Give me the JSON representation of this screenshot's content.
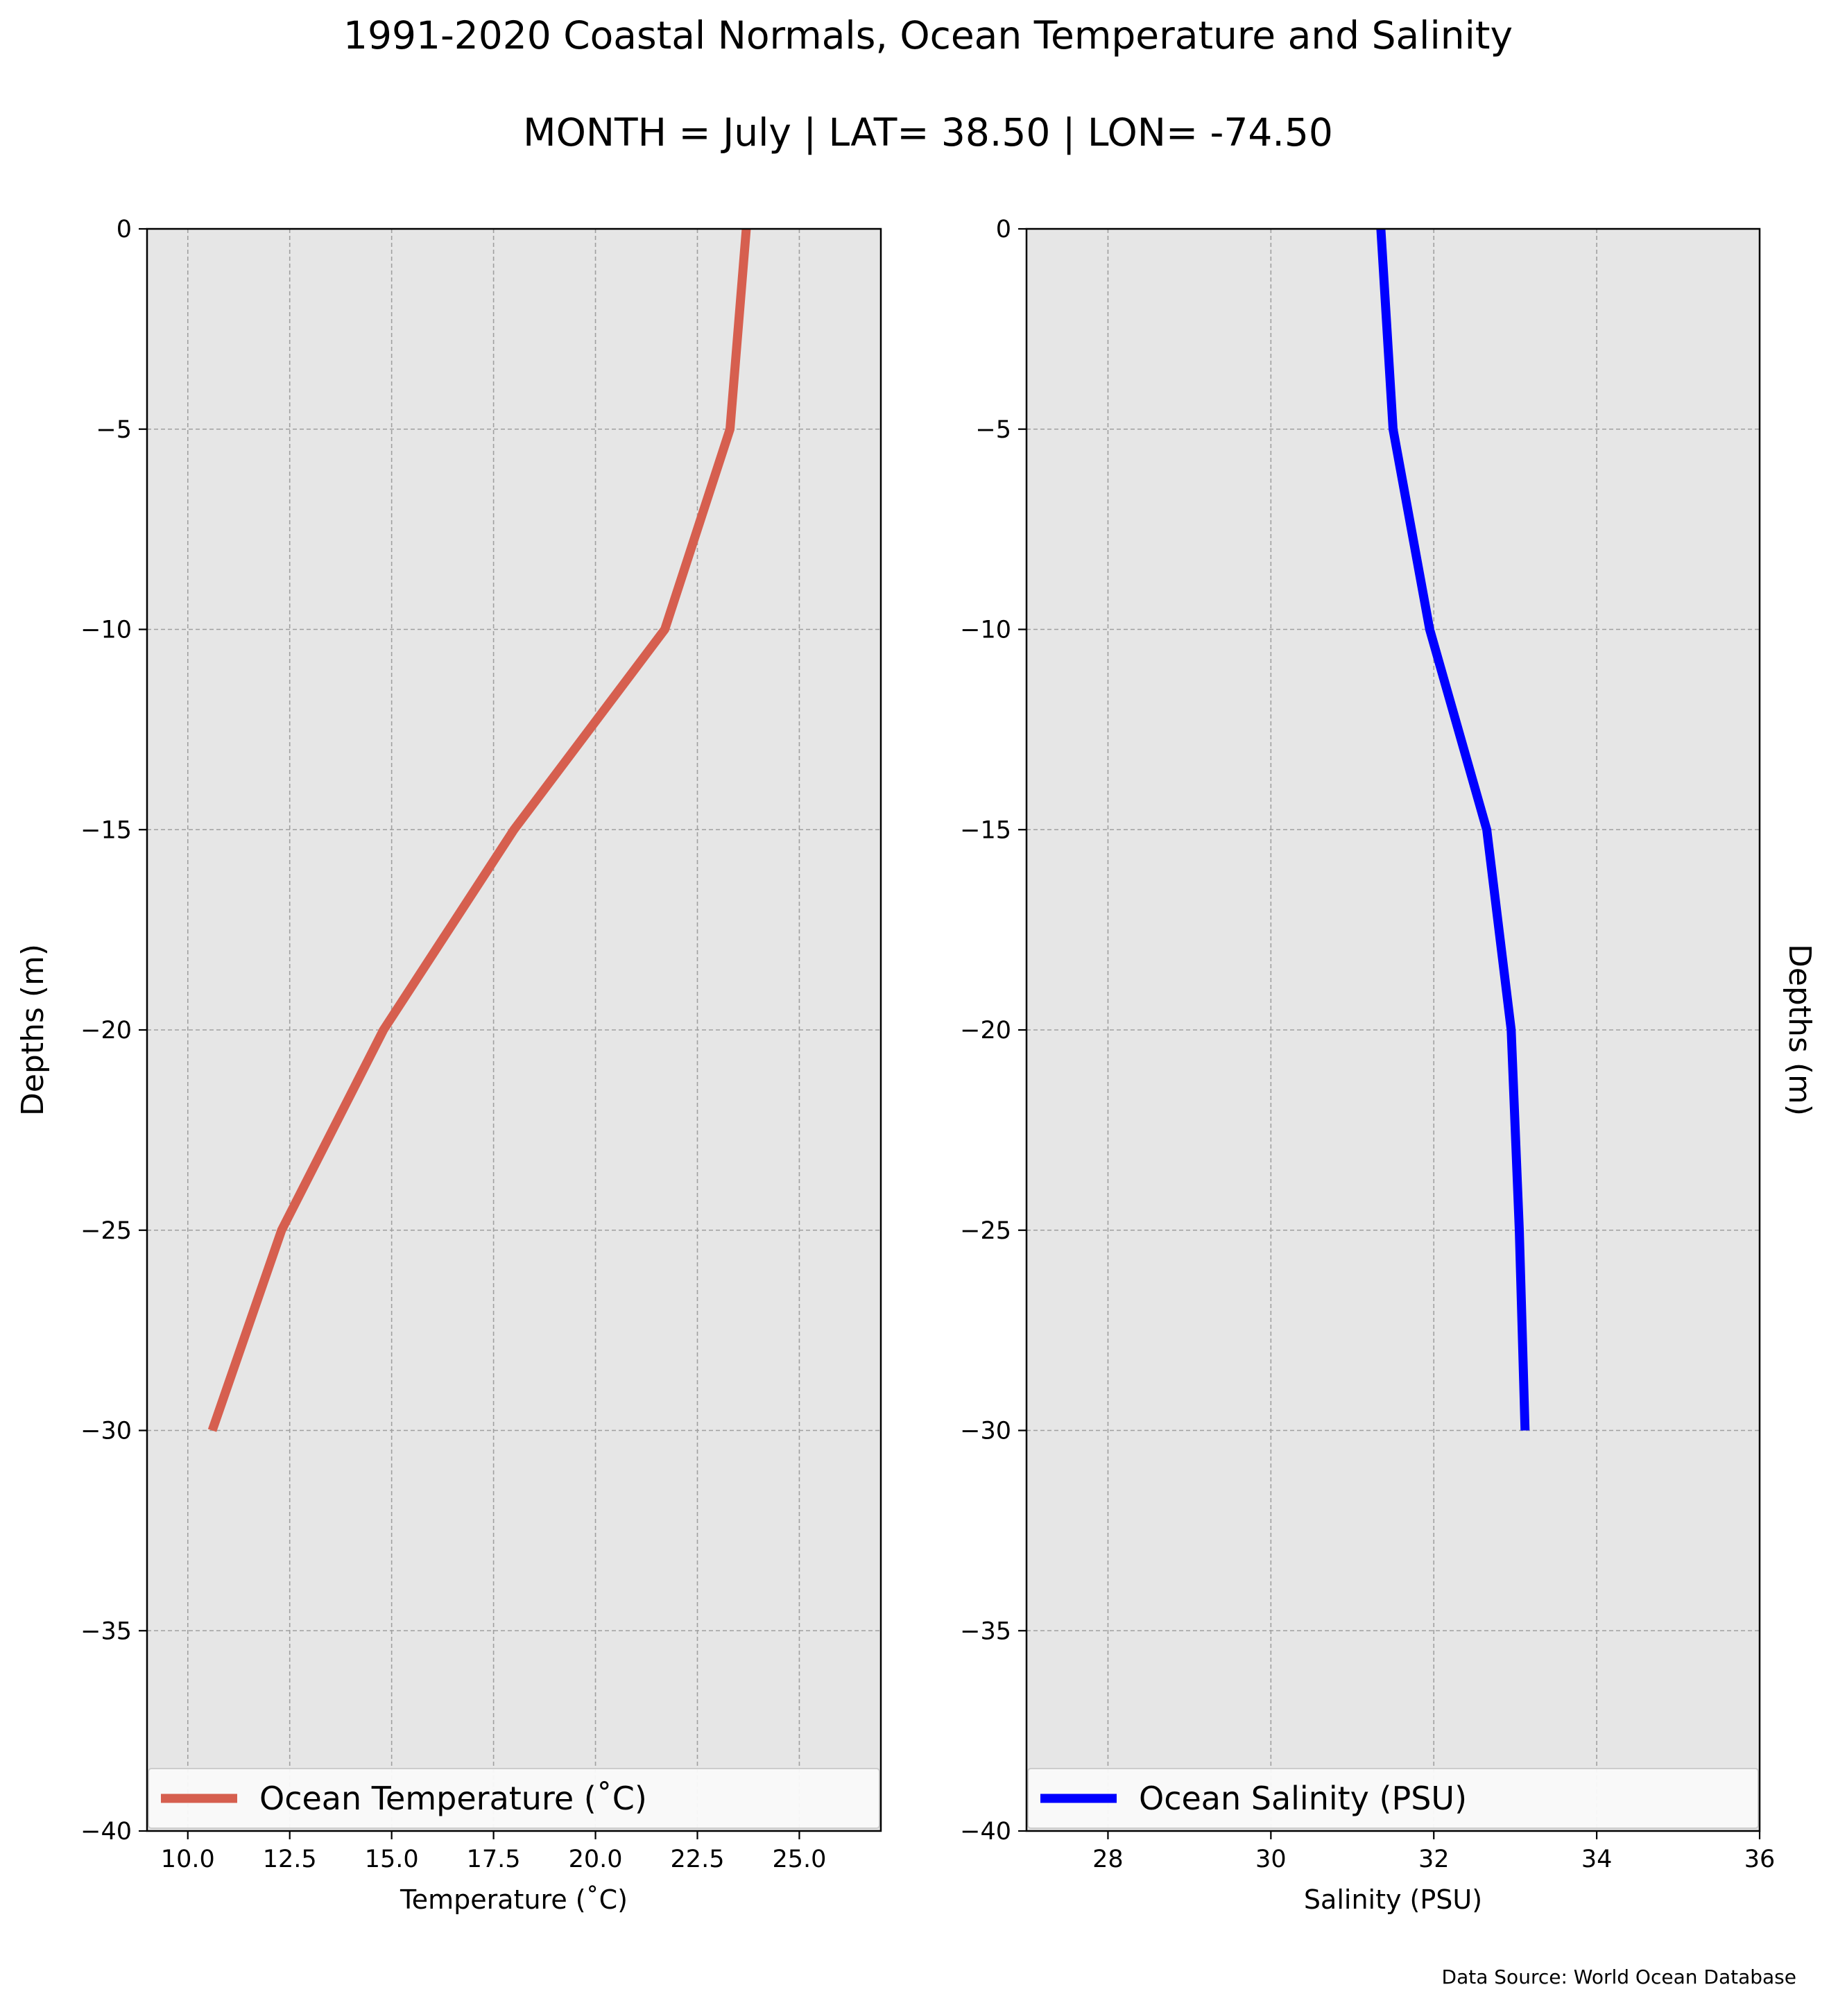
{
  "figure": {
    "title": "1991-2020 Coastal Normals, Ocean Temperature and Salinity",
    "subtitle": "MONTH = July | LAT= 38.50 | LON= -74.50",
    "source_note": "Data Source: World Ocean Database"
  },
  "chart_data": [
    {
      "type": "line",
      "xlabel": "Temperature ($^\\circ$C)",
      "xlabel_display": "Temperature (˚C)",
      "ylabel": "Depths (m)",
      "ylabel_side": "left",
      "xlim": [
        9.0,
        27.0
      ],
      "ylim": [
        -40,
        0
      ],
      "xticks": [
        10.0,
        12.5,
        15.0,
        17.5,
        20.0,
        22.5,
        25.0
      ],
      "xtick_labels": [
        "10.0",
        "12.5",
        "15.0",
        "17.5",
        "20.0",
        "22.5",
        "25.0"
      ],
      "yticks": [
        0,
        -5,
        -10,
        -15,
        -20,
        -25,
        -30,
        -35,
        -40
      ],
      "ytick_labels": [
        "0",
        "−5",
        "−10",
        "−15",
        "−20",
        "−25",
        "−30",
        "−35",
        "−40"
      ],
      "grid": true,
      "background": "#e6e6e6",
      "legend_position": "bottom",
      "series": [
        {
          "name": "Ocean Temperature (˚C)",
          "color": "#d65f4f",
          "x": [
            23.7,
            23.3,
            21.7,
            18.0,
            14.8,
            12.3,
            10.6
          ],
          "y": [
            0,
            -5,
            -10,
            -15,
            -20,
            -25,
            -30
          ]
        }
      ]
    },
    {
      "type": "line",
      "xlabel": "Salinity (PSU)",
      "xlabel_display": "Salinity (PSU)",
      "ylabel": "Depths (m)",
      "ylabel_side": "right",
      "xlim": [
        27,
        36
      ],
      "ylim": [
        -40,
        0
      ],
      "xticks": [
        28,
        30,
        32,
        34,
        36
      ],
      "xtick_labels": [
        "28",
        "30",
        "32",
        "34",
        "36"
      ],
      "yticks": [
        0,
        -5,
        -10,
        -15,
        -20,
        -25,
        -30,
        -35,
        -40
      ],
      "ytick_labels": [
        "0",
        "−5",
        "−10",
        "−15",
        "−20",
        "−25",
        "−30",
        "−35",
        "−40"
      ],
      "grid": true,
      "background": "#e6e6e6",
      "legend_position": "bottom",
      "series": [
        {
          "name": "Ocean Salinity (PSU)",
          "color": "#0000ff",
          "x": [
            31.35,
            31.5,
            31.95,
            32.65,
            32.95,
            33.05,
            33.12
          ],
          "y": [
            0,
            -5,
            -10,
            -15,
            -20,
            -25,
            -30
          ]
        }
      ]
    }
  ]
}
